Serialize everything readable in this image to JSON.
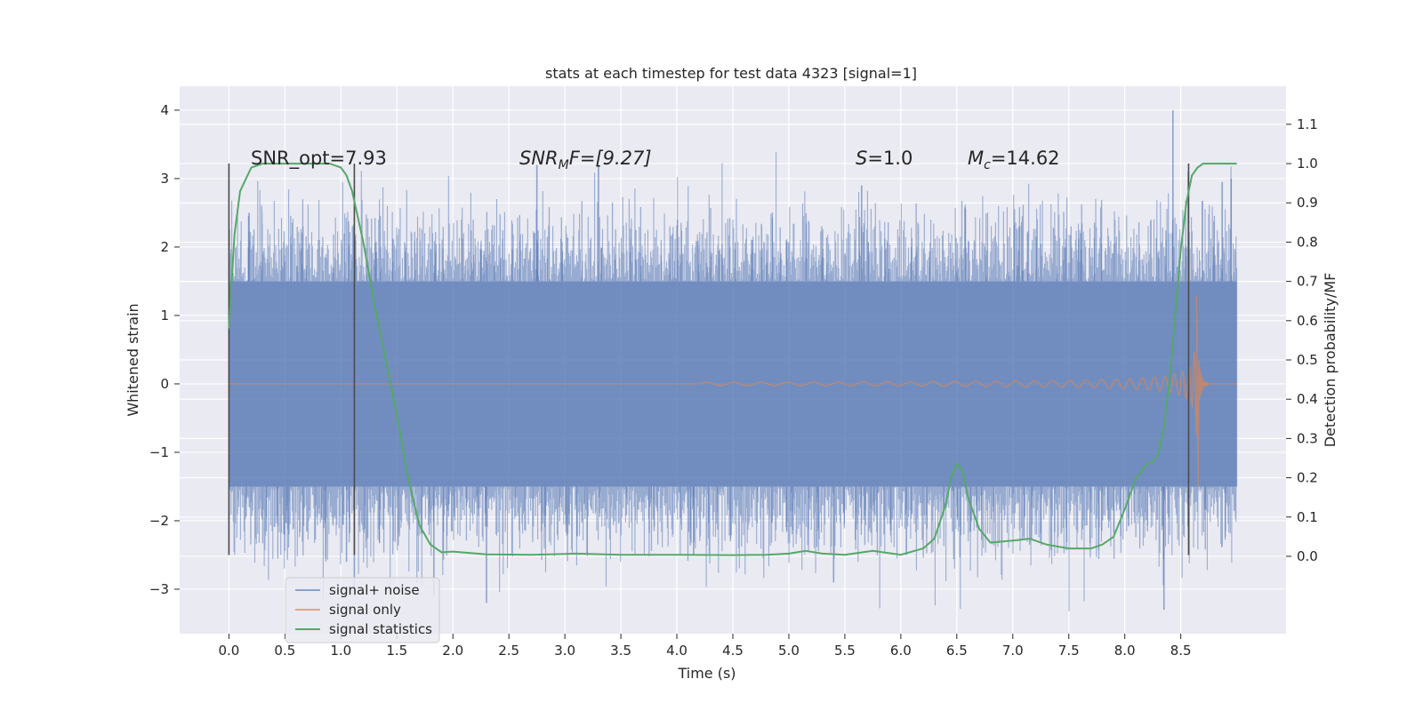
{
  "chart_data": {
    "type": "line",
    "title": "stats at each timestep for test data 4323 [signal=1]",
    "xlabel": "Time (s)",
    "ylabel_left": "Whitened strain",
    "ylabel_right": "Detection probability/MF",
    "xlim": [
      -0.44,
      9.44
    ],
    "ylim_left": [
      -3.65,
      4.35
    ],
    "ylim_right": [
      -0.197,
      1.197
    ],
    "x_ticks": [
      "0.0",
      "0.5",
      "1.0",
      "1.5",
      "2.0",
      "2.5",
      "3.0",
      "3.5",
      "4.0",
      "4.5",
      "5.0",
      "5.5",
      "6.0",
      "6.5",
      "7.0",
      "7.5",
      "8.0",
      "8.5"
    ],
    "y_ticks_left": [
      "−3",
      "−2",
      "−1",
      "0",
      "1",
      "2",
      "3",
      "4"
    ],
    "y_ticks_right": [
      "0.0",
      "0.1",
      "0.2",
      "0.3",
      "0.4",
      "0.5",
      "0.6",
      "0.7",
      "0.8",
      "0.9",
      "1.0",
      "1.1"
    ],
    "grid": true,
    "legend_position": "lower-left",
    "annotations": {
      "snr_opt": "SNR_opt=7.93",
      "snr_mf_main": "SNR",
      "snr_mf_sub": "M",
      "snr_mf_rest": "F=[9.27]",
      "s_main": "S",
      "s_rest": "=1.0",
      "mc_main": "M",
      "mc_sub": "c",
      "mc_rest": "=14.62"
    },
    "vertical_lines": [
      0.0,
      1.12,
      8.57
    ],
    "vertical_line_range": [
      -2.5,
      3.22
    ],
    "series": [
      {
        "name": "signal+ noise",
        "color": "#4c72b0",
        "axis": "left",
        "x_range": [
          0.0,
          9.0
        ],
        "core_amplitude": 1.5,
        "typical_extremes": [
          -2.6,
          2.7
        ],
        "spikes": [
          [
            0.18,
            2.5
          ],
          [
            1.05,
            -2.6
          ],
          [
            1.12,
            -3.1
          ],
          [
            1.83,
            -3.1
          ],
          [
            2.3,
            -3.2
          ],
          [
            2.75,
            3.2
          ],
          [
            3.3,
            3.2
          ],
          [
            4.15,
            -2.5
          ],
          [
            5.4,
            -2.9
          ],
          [
            5.65,
            2.9
          ],
          [
            6.05,
            -2.5
          ],
          [
            8.35,
            -3.3
          ],
          [
            8.43,
            4.0
          ],
          [
            8.95,
            3.0
          ],
          [
            8.87,
            2.95
          ]
        ]
      },
      {
        "name": "signal only",
        "color": "#dd8452",
        "axis": "left",
        "chirp_start": 4.2,
        "merger_time": 8.65,
        "peak_positive": 1.3,
        "peak_negative": -1.5,
        "ringdown_end": 8.75
      },
      {
        "name": "signal statistics",
        "color": "#55a868",
        "axis": "right",
        "x": [
          0.0,
          0.05,
          0.1,
          0.15,
          0.2,
          0.3,
          0.5,
          0.7,
          0.9,
          1.0,
          1.05,
          1.1,
          1.2,
          1.3,
          1.4,
          1.5,
          1.6,
          1.7,
          1.8,
          1.9,
          2.0,
          2.3,
          2.7,
          3.1,
          3.5,
          4.0,
          4.5,
          4.8,
          5.0,
          5.15,
          5.3,
          5.5,
          5.75,
          6.0,
          6.2,
          6.3,
          6.4,
          6.45,
          6.5,
          6.55,
          6.6,
          6.7,
          6.8,
          7.0,
          7.15,
          7.3,
          7.5,
          7.7,
          7.8,
          7.9,
          8.0,
          8.1,
          8.2,
          8.25,
          8.3,
          8.35,
          8.4,
          8.45,
          8.5,
          8.55,
          8.6,
          8.65,
          8.7,
          8.8,
          9.0
        ],
        "y": [
          0.58,
          0.82,
          0.93,
          0.96,
          0.99,
          1.0,
          1.0,
          1.0,
          1.0,
          0.99,
          0.97,
          0.93,
          0.8,
          0.64,
          0.5,
          0.36,
          0.2,
          0.08,
          0.03,
          0.01,
          0.012,
          0.005,
          0.004,
          0.007,
          0.004,
          0.004,
          0.003,
          0.004,
          0.007,
          0.014,
          0.007,
          0.004,
          0.014,
          0.004,
          0.02,
          0.045,
          0.13,
          0.2,
          0.235,
          0.22,
          0.15,
          0.07,
          0.035,
          0.04,
          0.045,
          0.03,
          0.02,
          0.02,
          0.03,
          0.05,
          0.12,
          0.2,
          0.235,
          0.24,
          0.26,
          0.33,
          0.45,
          0.61,
          0.78,
          0.9,
          0.97,
          0.99,
          1.0,
          1.0,
          1.0
        ]
      }
    ]
  }
}
